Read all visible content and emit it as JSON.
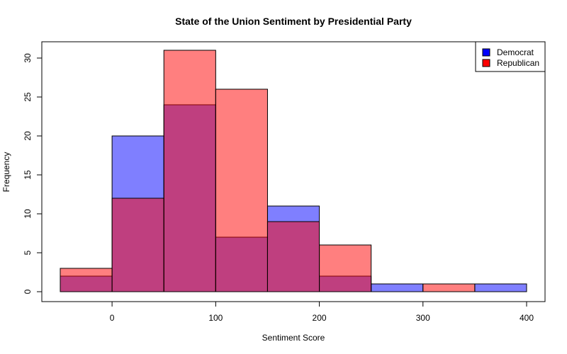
{
  "chart_data": {
    "type": "bar",
    "title": "State of the Union Sentiment by Presidential Party",
    "xlabel": "Sentiment Score",
    "ylabel": "Frequency",
    "xlim": [
      -50,
      400
    ],
    "ylim": [
      0,
      31
    ],
    "x_ticks": [
      0,
      100,
      200,
      300,
      400
    ],
    "y_ticks": [
      0,
      5,
      10,
      15,
      20,
      25,
      30
    ],
    "bin_edges": [
      -50,
      0,
      50,
      100,
      150,
      200,
      250,
      300,
      350,
      400
    ],
    "series": [
      {
        "name": "Democrat",
        "color": "#0000ff",
        "fill": "rgba(0,0,255,0.5)",
        "values": [
          2,
          20,
          24,
          7,
          11,
          2,
          1,
          0,
          1
        ]
      },
      {
        "name": "Republican",
        "color": "#ff0000",
        "fill": "rgba(255,0,0,0.5)",
        "values": [
          3,
          12,
          31,
          26,
          9,
          6,
          0,
          1,
          0
        ]
      }
    ],
    "legend_position": "top-right"
  }
}
